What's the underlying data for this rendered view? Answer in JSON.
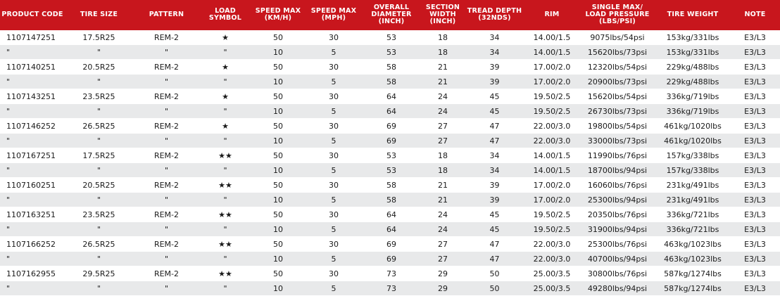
{
  "colors": {
    "header_bg": "#c8161d",
    "header_text": "#ffffff",
    "alt_row": "#e8e9ea",
    "divider": "#c8161d"
  },
  "headers": [
    "PRODUCT CODE",
    "TIRE SIZE",
    "PATTERN",
    "LOAD SYMBOL",
    "SPEED MAX (KM/H)",
    "SPEED MAX (MPH)",
    "OVERALL DIAMETER (INCH)",
    "SECTION WIDTH (INCH)",
    "TREAD DEPTH (32NDS)",
    "RIM",
    "SINGLE MAX/ LOAD PRESSURE (LBS/PSI)",
    "TIRE WEIGHT",
    "NOTE"
  ],
  "rows": [
    [
      "1107147251",
      "17.5R25",
      "REM-2",
      "★",
      "50",
      "30",
      "53",
      "18",
      "34",
      "14.00/1.5",
      "9075lbs/54psi",
      "153kg/331lbs",
      "E3/L3"
    ],
    [
      "\"",
      "\"",
      "\"",
      "\"",
      "10",
      "5",
      "53",
      "18",
      "34",
      "14.00/1.5",
      "15620lbs/73psi",
      "153kg/331lbs",
      "E3/L3"
    ],
    [
      "1107140251",
      "20.5R25",
      "REM-2",
      "★",
      "50",
      "30",
      "58",
      "21",
      "39",
      "17.00/2.0",
      "12320lbs/54psi",
      "229kg/488lbs",
      "E3/L3"
    ],
    [
      "\"",
      "\"",
      "\"",
      "\"",
      "10",
      "5",
      "58",
      "21",
      "39",
      "17.00/2.0",
      "20900lbs/73psi",
      "229kg/488lbs",
      "E3/L3"
    ],
    [
      "1107143251",
      "23.5R25",
      "REM-2",
      "★",
      "50",
      "30",
      "64",
      "24",
      "45",
      "19.50/2.5",
      "15620lbs/54psi",
      "336kg/719lbs",
      "E3/L3"
    ],
    [
      "\"",
      "\"",
      "\"",
      "\"",
      "10",
      "5",
      "64",
      "24",
      "45",
      "19.50/2.5",
      "26730lbs/73psi",
      "336kg/719lbs",
      "E3/L3"
    ],
    [
      "1107146252",
      "26.5R25",
      "REM-2",
      "★",
      "50",
      "30",
      "69",
      "27",
      "47",
      "22.00/3.0",
      "19800lbs/54psi",
      "461kg/1020lbs",
      "E3/L3"
    ],
    [
      "\"",
      "\"",
      "\"",
      "\"",
      "10",
      "5",
      "69",
      "27",
      "47",
      "22.00/3.0",
      "33000lbs/73psi",
      "461kg/1020lbs",
      "E3/L3"
    ],
    [
      "1107167251",
      "17.5R25",
      "REM-2",
      "★★",
      "50",
      "30",
      "53",
      "18",
      "34",
      "14.00/1.5",
      "11990lbs/76psi",
      "157kg/338lbs",
      "E3/L3"
    ],
    [
      "\"",
      "\"",
      "\"",
      "\"",
      "10",
      "5",
      "53",
      "18",
      "34",
      "14.00/1.5",
      "18700lbs/94psi",
      "157kg/338lbs",
      "E3/L3"
    ],
    [
      "1107160251",
      "20.5R25",
      "REM-2",
      "★★",
      "50",
      "30",
      "58",
      "21",
      "39",
      "17.00/2.0",
      "16060lbs/76psi",
      "231kg/491lbs",
      "E3/L3"
    ],
    [
      "\"",
      "\"",
      "\"",
      "\"",
      "10",
      "5",
      "58",
      "21",
      "39",
      "17.00/2.0",
      "25300lbs/94psi",
      "231kg/491lbs",
      "E3/L3"
    ],
    [
      "1107163251",
      "23.5R25",
      "REM-2",
      "★★",
      "50",
      "30",
      "64",
      "24",
      "45",
      "19.50/2.5",
      "20350lbs/76psi",
      "336kg/721lbs",
      "E3/L3"
    ],
    [
      "\"",
      "\"",
      "\"",
      "\"",
      "10",
      "5",
      "64",
      "24",
      "45",
      "19.50/2.5",
      "31900lbs/94psi",
      "336kg/721lbs",
      "E3/L3"
    ],
    [
      "1107166252",
      "26.5R25",
      "REM-2",
      "★★",
      "50",
      "30",
      "69",
      "27",
      "47",
      "22.00/3.0",
      "25300lbs/76psi",
      "463kg/1023lbs",
      "E3/L3"
    ],
    [
      "\"",
      "\"",
      "\"",
      "\"",
      "10",
      "5",
      "69",
      "27",
      "47",
      "22.00/3.0",
      "40700lbs/94psi",
      "463kg/1023lbs",
      "E3/L3"
    ],
    [
      "1107162955",
      "29.5R25",
      "REM-2",
      "★★",
      "50",
      "30",
      "73",
      "29",
      "50",
      "25.00/3.5",
      "30800lbs/76psi",
      "587kg/1274lbs",
      "E3/L3"
    ],
    [
      "\"",
      "\"",
      "\"",
      "\"",
      "10",
      "5",
      "73",
      "29",
      "50",
      "25.00/3.5",
      "49280lbs/94psi",
      "587kg/1274lbs",
      "E3/L3"
    ]
  ]
}
